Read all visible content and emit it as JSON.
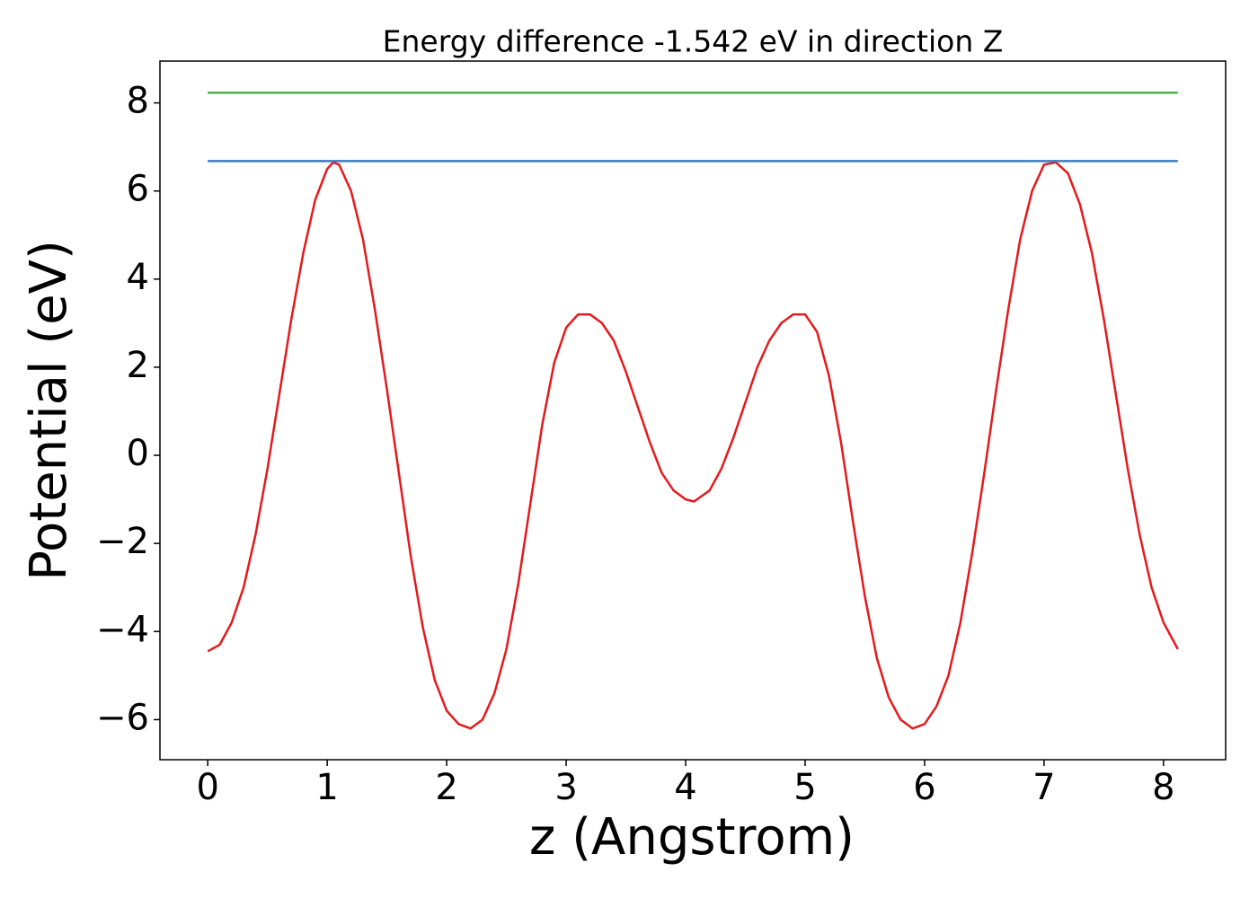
{
  "chart_data": {
    "type": "line",
    "title": "Energy difference -1.542 eV in direction Z",
    "x_label": "z (Angstrom)",
    "y_label": "Potential (eV)",
    "xlim": [
      -0.4,
      8.52
    ],
    "ylim": [
      -6.91,
      8.95
    ],
    "xticks": [
      0,
      1,
      2,
      3,
      4,
      5,
      6,
      7,
      8
    ],
    "yticks": [
      {
        "value": -6,
        "label": "−6"
      },
      {
        "value": -4,
        "label": "−4"
      },
      {
        "value": -2,
        "label": "−2"
      },
      0,
      2,
      4,
      6,
      8
    ],
    "grid": false,
    "series": [
      {
        "color": "#e41a1c",
        "x": [
          0,
          0.1,
          0.2,
          0.3,
          0.4,
          0.5,
          0.6,
          0.7,
          0.8,
          0.9,
          1.0,
          1.05,
          1.1,
          1.2,
          1.3,
          1.4,
          1.5,
          1.6,
          1.7,
          1.8,
          1.9,
          2.0,
          2.1,
          2.2,
          2.3,
          2.4,
          2.5,
          2.6,
          2.7,
          2.8,
          2.9,
          3.0,
          3.1,
          3.2,
          3.3,
          3.4,
          3.5,
          3.6,
          3.7,
          3.8,
          3.9,
          4.0,
          4.07,
          4.2,
          4.3,
          4.4,
          4.5,
          4.6,
          4.7,
          4.8,
          4.9,
          5.0,
          5.1,
          5.2,
          5.3,
          5.4,
          5.5,
          5.6,
          5.7,
          5.8,
          5.9,
          6.0,
          6.1,
          6.2,
          6.3,
          6.4,
          6.5,
          6.6,
          6.7,
          6.8,
          6.9,
          7.0,
          7.1,
          7.2,
          7.3,
          7.4,
          7.5,
          7.6,
          7.7,
          7.8,
          7.9,
          8.0,
          8.12
        ],
        "values": [
          -4.45,
          -4.3,
          -3.8,
          -3.0,
          -1.8,
          -0.3,
          1.4,
          3.1,
          4.6,
          5.8,
          6.5,
          6.65,
          6.6,
          6.0,
          4.9,
          3.3,
          1.5,
          -0.4,
          -2.3,
          -3.9,
          -5.1,
          -5.8,
          -6.1,
          -6.2,
          -6.0,
          -5.4,
          -4.4,
          -2.9,
          -1.1,
          0.7,
          2.1,
          2.9,
          3.2,
          3.2,
          3.0,
          2.6,
          1.9,
          1.1,
          0.3,
          -0.4,
          -0.8,
          -1.0,
          -1.05,
          -0.8,
          -0.3,
          0.4,
          1.2,
          2.0,
          2.6,
          3.0,
          3.2,
          3.2,
          2.8,
          1.8,
          0.3,
          -1.5,
          -3.2,
          -4.6,
          -5.5,
          -6.0,
          -6.2,
          -6.1,
          -5.7,
          -5.0,
          -3.8,
          -2.2,
          -0.4,
          1.5,
          3.3,
          4.9,
          6.0,
          6.6,
          6.65,
          6.4,
          5.7,
          4.6,
          3.1,
          1.4,
          -0.3,
          -1.8,
          -3.0,
          -3.8,
          -4.4
        ]
      },
      {
        "color": "#3a7dc0",
        "x": [
          0,
          8.12
        ],
        "values": [
          6.68,
          6.68
        ]
      },
      {
        "color": "#4daf4a",
        "x": [
          0,
          8.12
        ],
        "values": [
          8.23,
          8.23
        ]
      }
    ]
  }
}
